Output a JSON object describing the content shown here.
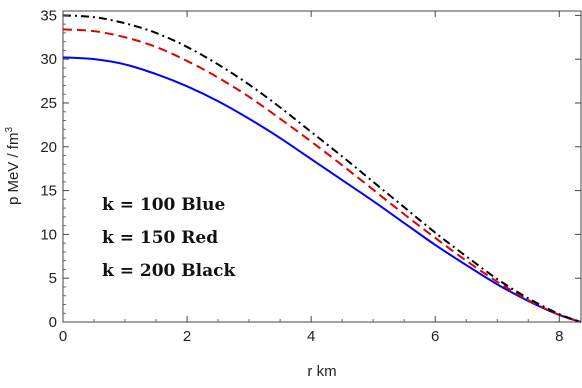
{
  "chart_data": {
    "type": "line",
    "title": "",
    "xlabel": "r  km",
    "ylabel": "p  MeV / fm",
    "ylabel_sup": "3",
    "xlim": [
      0,
      8.35
    ],
    "ylim": [
      0,
      35.5
    ],
    "x_ticks": [
      0,
      2,
      4,
      6,
      8
    ],
    "y_ticks": [
      0,
      5,
      10,
      15,
      20,
      25,
      30,
      35
    ],
    "x_tick_labels": [
      "0",
      "2",
      "4",
      "6",
      "8"
    ],
    "y_tick_labels": [
      "0",
      "5",
      "10",
      "15",
      "20",
      "25",
      "30",
      "35"
    ],
    "grid": false,
    "series": [
      {
        "color": "#0000ff",
        "dash": "solid",
        "x": [
          0,
          0.5,
          1,
          1.5,
          2,
          2.5,
          3,
          3.5,
          4,
          4.5,
          5,
          5.5,
          6,
          6.5,
          7,
          7.5,
          8,
          8.35
        ],
        "y": [
          30.2,
          30.0,
          29.4,
          28.3,
          26.9,
          25.2,
          23.2,
          21.0,
          18.6,
          16.2,
          13.8,
          11.3,
          8.8,
          6.5,
          4.3,
          2.4,
          0.8,
          0
        ]
      },
      {
        "color": "#e00000",
        "dash": "dashed",
        "x": [
          0,
          0.5,
          1,
          1.5,
          2,
          2.5,
          3,
          3.5,
          4,
          4.5,
          5,
          5.5,
          6,
          6.5,
          7,
          7.5,
          8,
          8.35
        ],
        "y": [
          33.4,
          33.2,
          32.5,
          31.4,
          29.8,
          27.9,
          25.7,
          23.2,
          20.6,
          17.9,
          15.1,
          12.3,
          9.6,
          7.0,
          4.6,
          2.5,
          0.8,
          0
        ]
      },
      {
        "color": "#000000",
        "dash": "dashdot",
        "x": [
          0,
          0.5,
          1,
          1.5,
          2,
          2.5,
          3,
          3.5,
          4,
          4.5,
          5,
          5.5,
          6,
          6.5,
          7,
          7.5,
          8,
          8.35
        ],
        "y": [
          35.0,
          34.8,
          34.1,
          33.0,
          31.4,
          29.4,
          27.1,
          24.5,
          21.7,
          18.9,
          16.0,
          13.1,
          10.2,
          7.5,
          4.9,
          2.7,
          0.9,
          0
        ]
      }
    ],
    "annotations": [
      "k = 100  Blue",
      "k = 150  Red",
      "k = 200  Black"
    ]
  }
}
